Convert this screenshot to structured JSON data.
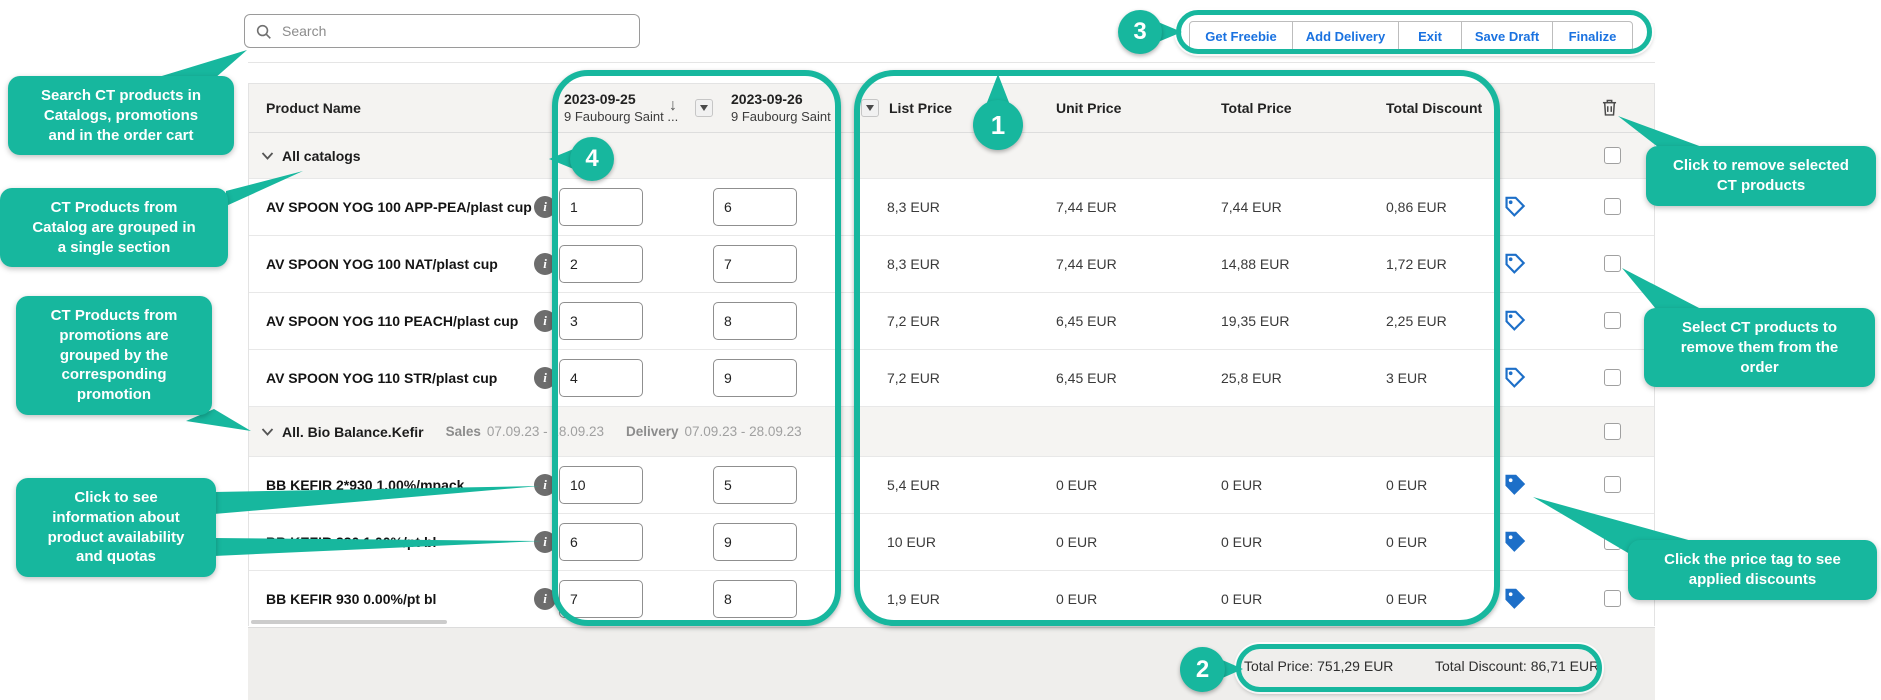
{
  "accent_color": "#17B79E",
  "price_tag_color": "#1d6fc8",
  "search": {
    "placeholder": "Search"
  },
  "toolbar": {
    "buttons": [
      "Get Freebie",
      "Add Delivery",
      "Exit",
      "Save Draft",
      "Finalize"
    ]
  },
  "table": {
    "columns": {
      "product": "Product Name",
      "prices": [
        "List Price",
        "Unit Price",
        "Total Price",
        "Total Discount"
      ]
    },
    "date_columns": [
      {
        "date": "2023-09-25",
        "location": "9 Faubourg Saint ..."
      },
      {
        "date": "2023-09-26",
        "location": "9 Faubourg Saint .."
      }
    ],
    "groups": [
      {
        "label": "All catalogs",
        "rows": [
          {
            "name": "AV SPOON YOG 100 APP-PEA/plast cup",
            "qty1": "1",
            "qty2": "6",
            "list_price": "8,3 EUR",
            "unit_price": "7,44 EUR",
            "total_price": "7,44 EUR",
            "total_discount": "0,86 EUR",
            "tag_style": "outline"
          },
          {
            "name": "AV SPOON YOG 100 NAT/plast cup",
            "qty1": "2",
            "qty2": "7",
            "list_price": "8,3 EUR",
            "unit_price": "7,44 EUR",
            "total_price": "14,88 EUR",
            "total_discount": "1,72 EUR",
            "tag_style": "outline"
          },
          {
            "name": "AV SPOON YOG 110 PEACH/plast cup",
            "qty1": "3",
            "qty2": "8",
            "list_price": "7,2 EUR",
            "unit_price": "6,45 EUR",
            "total_price": "19,35 EUR",
            "total_discount": "2,25 EUR",
            "tag_style": "outline"
          },
          {
            "name": "AV SPOON YOG 110 STR/plast cup",
            "qty1": "4",
            "qty2": "9",
            "list_price": "7,2 EUR",
            "unit_price": "6,45 EUR",
            "total_price": "25,8 EUR",
            "total_discount": "3 EUR",
            "tag_style": "outline"
          }
        ]
      },
      {
        "label": "All. Bio Balance.Kefir",
        "sales_label": "Sales",
        "sales_period": "07.09.23 - 28.09.23",
        "delivery_label": "Delivery",
        "delivery_period": "07.09.23 - 28.09.23",
        "rows": [
          {
            "name": "BB KEFIR 2*930 1.00%/mpack",
            "qty1": "10",
            "qty2": "5",
            "list_price": "5,4 EUR",
            "unit_price": "0 EUR",
            "total_price": "0 EUR",
            "total_discount": "0 EUR",
            "tag_style": "solid"
          },
          {
            "name": "BB KEFIR 330 1.00%/pt bl",
            "qty1": "6",
            "qty2": "9",
            "list_price": "10 EUR",
            "unit_price": "0 EUR",
            "total_price": "0 EUR",
            "total_discount": "0 EUR",
            "tag_style": "solid"
          },
          {
            "name": "BB KEFIR 930 0.00%/pt bl",
            "qty1": "7",
            "qty2": "8",
            "list_price": "1,9 EUR",
            "unit_price": "0 EUR",
            "total_price": "0 EUR",
            "total_discount": "0 EUR",
            "tag_style": "solid"
          }
        ]
      }
    ]
  },
  "footer": {
    "total_price_label": "Total Price:",
    "total_price_value": "751,29 EUR",
    "total_discount_label": "Total Discount:",
    "total_discount_value": "86,71 EUR"
  },
  "annotations": {
    "markers": {
      "m1": "1",
      "m2": "2",
      "m3": "3",
      "m4": "4"
    },
    "callouts": [
      "Search CT products in\nCatalogs, promotions\nand in the order cart",
      "CT Products from\nCatalog are grouped in\na single section",
      "CT Products from\npromotions are\ngrouped by the\ncorresponding\npromotion",
      "Click to see\ninformation about\nproduct availability\nand quotas",
      "Click to remove selected\nCT products",
      "Select CT products to\nremove them from the\norder",
      "Click the price tag to see\napplied discounts"
    ]
  }
}
